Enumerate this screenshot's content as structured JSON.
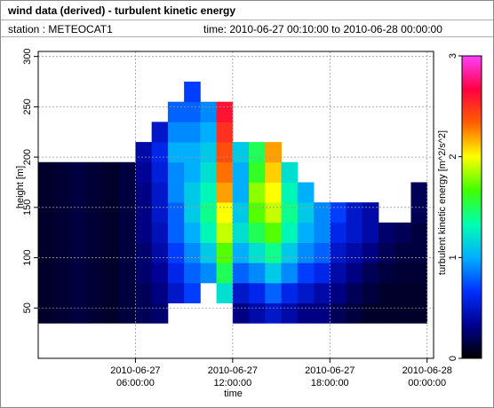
{
  "header": {
    "title": "wind data (derived) - turbulent kinetic energy",
    "station": "station : METEOCAT1",
    "period": "time: 2010-06-27 00:10:00 to 2010-06-28 00:00:00"
  },
  "chart_data": {
    "type": "heatmap",
    "x_label": "time",
    "y_label": "height [m]",
    "colorbar_label": "turbulent kinetic energy [m^2/s^2]",
    "xlim": [
      0,
      24.4
    ],
    "ylim": [
      0,
      305
    ],
    "colorlim": [
      0,
      3
    ],
    "xticks": [
      {
        "value": 6,
        "label": [
          "2010-06-27",
          "06:00:00"
        ]
      },
      {
        "value": 12,
        "label": [
          "2010-06-27",
          "12:00:00"
        ]
      },
      {
        "value": 18,
        "label": [
          "2010-06-27",
          "18:00:00"
        ]
      },
      {
        "value": 24,
        "label": [
          "2010-06-28",
          "00:00:00"
        ]
      }
    ],
    "yticks": [
      50,
      100,
      150,
      200,
      250,
      300
    ],
    "colorticks": [
      0,
      1,
      2,
      3
    ],
    "grid": true,
    "colorscale": [
      "#000000",
      "#000090",
      "#0030ff",
      "#00b0ff",
      "#00ffb0",
      "#40ff00",
      "#ffff00",
      "#ff6000",
      "#ff0040",
      "#ff40ff"
    ],
    "x": [
      0.5,
      1.5,
      2.5,
      3.5,
      4.5,
      5.5,
      6.5,
      7.5,
      8.5,
      9.5,
      10.5,
      11.5,
      12.5,
      13.5,
      14.5,
      15.5,
      16.5,
      17.5,
      18.5,
      19.5,
      20.5,
      21.5,
      22.5,
      23.5
    ],
    "y": [
      45,
      65,
      85,
      105,
      125,
      145,
      165,
      185,
      205,
      225,
      245,
      265
    ],
    "z": [
      [
        0.1,
        0.1,
        0.1,
        0.1,
        0.1,
        0.1,
        0.1,
        0.1,
        null,
        null,
        null,
        null
      ],
      [
        0.12,
        0.12,
        0.12,
        0.12,
        0.12,
        0.12,
        0.12,
        0.12,
        null,
        null,
        null,
        null
      ],
      [
        0.15,
        0.15,
        0.15,
        0.15,
        0.15,
        0.15,
        0.15,
        0.15,
        null,
        null,
        null,
        null
      ],
      [
        0.12,
        0.12,
        0.12,
        0.12,
        0.12,
        0.12,
        0.12,
        0.12,
        null,
        null,
        null,
        null
      ],
      [
        0.1,
        0.1,
        0.1,
        0.1,
        0.1,
        0.1,
        0.1,
        0.1,
        null,
        null,
        null,
        null
      ],
      [
        0.15,
        0.15,
        0.15,
        0.15,
        0.15,
        0.15,
        0.15,
        0.15,
        null,
        null,
        null,
        null
      ],
      [
        0.2,
        0.2,
        0.25,
        0.25,
        0.3,
        0.3,
        0.3,
        0.35,
        0.4,
        null,
        null,
        null
      ],
      [
        0.25,
        0.3,
        0.35,
        0.4,
        0.45,
        0.5,
        0.5,
        0.55,
        0.6,
        0.5,
        null,
        null
      ],
      [
        null,
        0.5,
        0.6,
        0.7,
        0.8,
        0.8,
        0.9,
        0.9,
        1.0,
        0.9,
        0.8,
        null
      ],
      [
        null,
        0.7,
        0.8,
        0.9,
        1.0,
        1.1,
        1.1,
        1.0,
        1.0,
        0.9,
        0.8,
        0.7
      ],
      [
        null,
        null,
        0.9,
        1.1,
        1.3,
        1.4,
        1.3,
        1.2,
        1.1,
        1.0,
        0.9,
        null
      ],
      [
        null,
        1.2,
        1.5,
        1.7,
        1.9,
        2.0,
        2.2,
        2.3,
        2.4,
        2.5,
        2.6,
        null
      ],
      [
        0.3,
        0.5,
        0.8,
        1.0,
        1.2,
        1.1,
        1.0,
        1.0,
        1.1,
        null,
        null,
        null
      ],
      [
        0.4,
        0.6,
        0.9,
        1.2,
        1.5,
        1.7,
        1.8,
        1.6,
        1.5,
        null,
        null,
        null
      ],
      [
        0.5,
        0.8,
        1.1,
        1.4,
        1.7,
        1.9,
        2.0,
        2.1,
        2.2,
        null,
        null,
        null
      ],
      [
        0.4,
        0.6,
        0.9,
        1.1,
        1.3,
        1.4,
        1.3,
        1.2,
        null,
        null,
        null,
        null
      ],
      [
        0.3,
        0.5,
        0.7,
        0.9,
        1.0,
        1.1,
        1.0,
        null,
        null,
        null,
        null,
        null
      ],
      [
        0.3,
        0.4,
        0.6,
        0.8,
        0.9,
        0.9,
        null,
        null,
        null,
        null,
        null,
        null
      ],
      [
        0.2,
        0.3,
        0.4,
        0.5,
        0.6,
        0.7,
        null,
        null,
        null,
        null,
        null,
        null
      ],
      [
        0.15,
        0.2,
        0.3,
        0.4,
        0.5,
        0.5,
        null,
        null,
        null,
        null,
        null,
        null
      ],
      [
        0.1,
        0.15,
        0.2,
        0.3,
        0.4,
        0.4,
        null,
        null,
        null,
        null,
        null,
        null
      ],
      [
        0.1,
        0.1,
        0.15,
        0.2,
        0.25,
        null,
        null,
        null,
        null,
        null,
        null,
        null
      ],
      [
        0.1,
        0.1,
        0.12,
        0.15,
        0.2,
        null,
        null,
        null,
        null,
        null,
        null,
        null
      ],
      [
        0.1,
        0.1,
        0.12,
        0.15,
        0.15,
        0.2,
        0.2,
        null,
        null,
        null,
        null,
        null
      ]
    ]
  }
}
